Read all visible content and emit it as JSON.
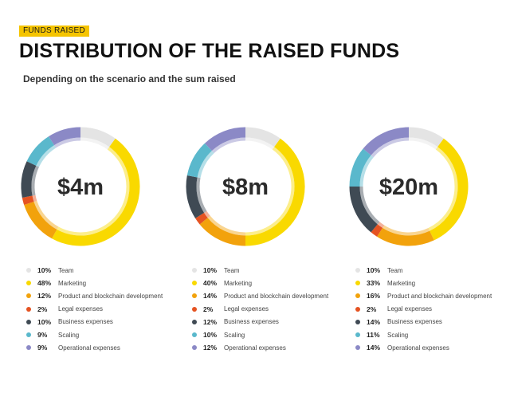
{
  "header": {
    "tag": "FUNDS RAISED",
    "title": "DISTRIBUTION OF THE RAISED FUNDS",
    "subtitle": "Depending on the scenario and the sum raised"
  },
  "colors": {
    "team": "#e4e4e4",
    "marketing": "#f9d900",
    "product": "#f2a20c",
    "legal": "#e55322",
    "business": "#3f4a54",
    "scaling": "#5ab8cc",
    "operational": "#8b89c6"
  },
  "chart_data": [
    {
      "type": "pie",
      "center_label": "$4m",
      "slices": [
        {
          "label": "Team",
          "value": 10,
          "pct": "10%",
          "color": "#e4e4e4"
        },
        {
          "label": "Marketing",
          "value": 48,
          "pct": "48%",
          "color": "#f9d900"
        },
        {
          "label": "Product and blockchain development",
          "value": 12,
          "pct": "12%",
          "color": "#f2a20c"
        },
        {
          "label": "Legal expenses",
          "value": 2,
          "pct": "2%",
          "color": "#e55322"
        },
        {
          "label": "Business expenses",
          "value": 10,
          "pct": "10%",
          "color": "#3f4a54"
        },
        {
          "label": "Scaling",
          "value": 9,
          "pct": "9%",
          "color": "#5ab8cc"
        },
        {
          "label": "Operational expenses",
          "value": 9,
          "pct": "9%",
          "color": "#8b89c6"
        }
      ]
    },
    {
      "type": "pie",
      "center_label": "$8m",
      "slices": [
        {
          "label": "Team",
          "value": 10,
          "pct": "10%",
          "color": "#e4e4e4"
        },
        {
          "label": "Marketing",
          "value": 40,
          "pct": "40%",
          "color": "#f9d900"
        },
        {
          "label": "Product and blockchain development",
          "value": 14,
          "pct": "14%",
          "color": "#f2a20c"
        },
        {
          "label": "Legal expenses",
          "value": 2,
          "pct": "2%",
          "color": "#e55322"
        },
        {
          "label": "Business expenses",
          "value": 12,
          "pct": "12%",
          "color": "#3f4a54"
        },
        {
          "label": "Scaling",
          "value": 10,
          "pct": "10%",
          "color": "#5ab8cc"
        },
        {
          "label": "Operational expenses",
          "value": 12,
          "pct": "12%",
          "color": "#8b89c6"
        }
      ]
    },
    {
      "type": "pie",
      "center_label": "$20m",
      "slices": [
        {
          "label": "Team",
          "value": 10,
          "pct": "10%",
          "color": "#e4e4e4"
        },
        {
          "label": "Marketing",
          "value": 33,
          "pct": "33%",
          "color": "#f9d900"
        },
        {
          "label": "Product and blockchain development",
          "value": 16,
          "pct": "16%",
          "color": "#f2a20c"
        },
        {
          "label": "Legal expenses",
          "value": 2,
          "pct": "2%",
          "color": "#e55322"
        },
        {
          "label": "Business expenses",
          "value": 14,
          "pct": "14%",
          "color": "#3f4a54"
        },
        {
          "label": "Scaling",
          "value": 11,
          "pct": "11%",
          "color": "#5ab8cc"
        },
        {
          "label": "Operational expenses",
          "value": 14,
          "pct": "14%",
          "color": "#8b89c6"
        }
      ]
    }
  ]
}
